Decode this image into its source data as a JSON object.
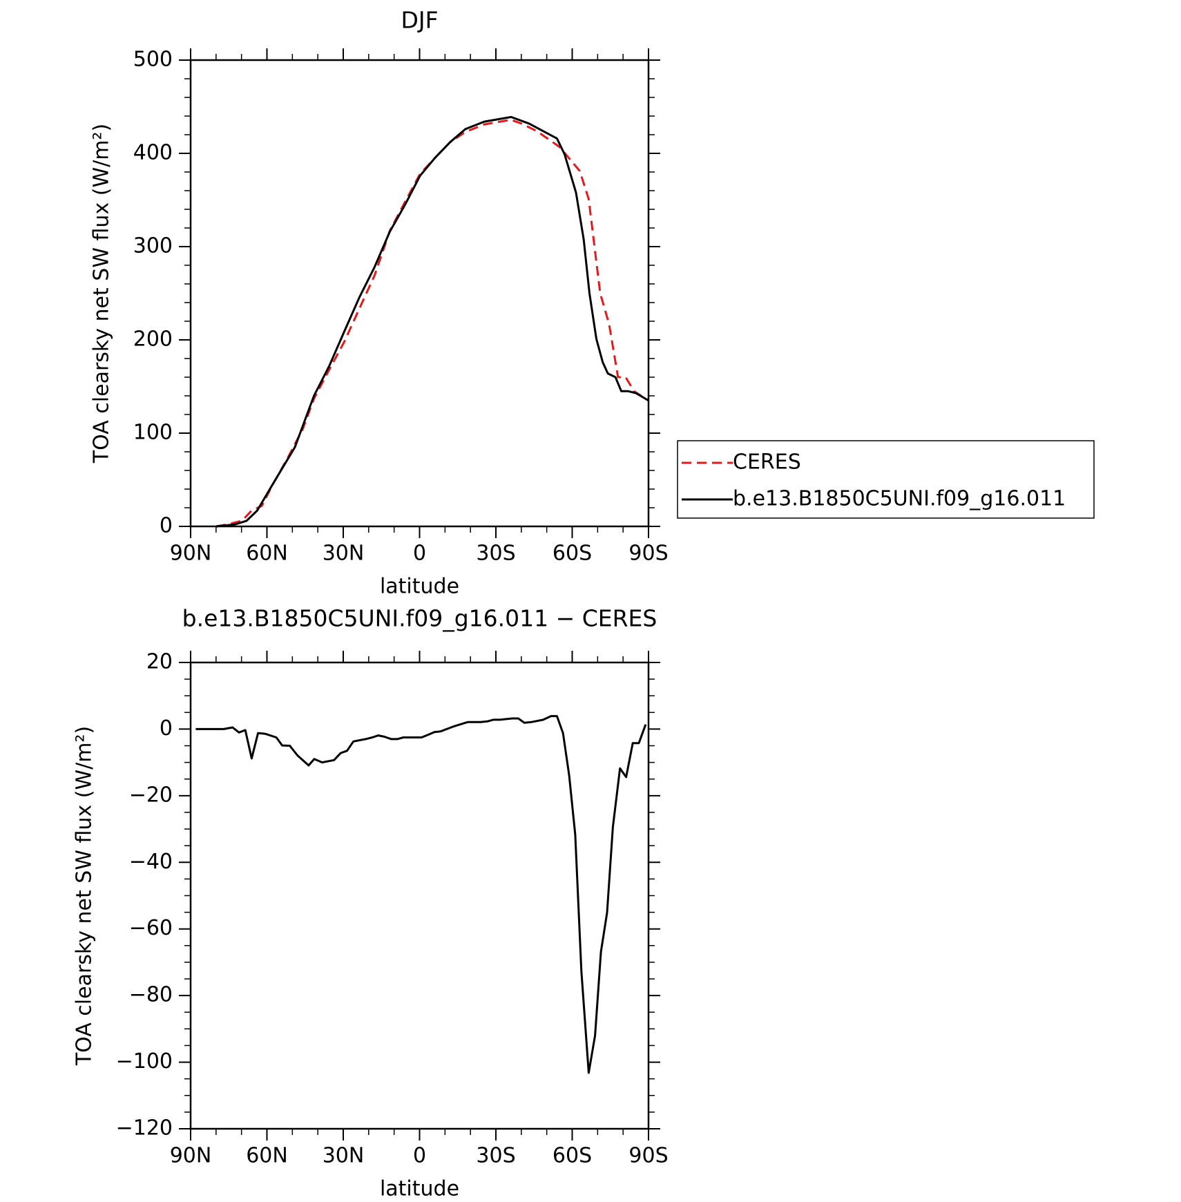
{
  "chart_data": [
    {
      "type": "line",
      "title": "DJF",
      "xlabel": "latitude",
      "ylabel": "TOA clearsky net SW flux (W/m²)",
      "xlim": [
        90,
        -90
      ],
      "xticks": [
        {
          "value": 90,
          "label": "90N"
        },
        {
          "value": 60,
          "label": "60N"
        },
        {
          "value": 30,
          "label": "30N"
        },
        0,
        {
          "value": -30,
          "label": "30S"
        },
        {
          "value": -60,
          "label": "60S"
        },
        {
          "value": -90,
          "label": "90S"
        }
      ],
      "xminorticks": [
        80,
        70,
        50,
        40,
        20,
        10,
        -10,
        -20,
        -40,
        -50,
        -70,
        -80
      ],
      "ylim": [
        0,
        500
      ],
      "yticks": [
        0,
        100,
        200,
        300,
        400,
        500
      ],
      "yminorticks": [
        20,
        40,
        60,
        80,
        120,
        140,
        160,
        180,
        220,
        240,
        260,
        280,
        320,
        340,
        360,
        380,
        420,
        440,
        460,
        480
      ],
      "legend": "right",
      "series": [
        {
          "name": "CERES",
          "color": "#e31a1c",
          "dash": "dashed",
          "x": [
            80,
            75.7,
            69.8,
            66,
            62,
            57.9,
            51.9,
            46,
            41.5,
            35.5,
            29.6,
            23.6,
            17.7,
            11.7,
            5.7,
            -0.2,
            -6,
            -12,
            -18,
            -25.4,
            -35.9,
            -40,
            -46,
            -55,
            -63,
            -66.5,
            -71,
            -74.5,
            -78,
            -81,
            -84.3,
            -90
          ],
          "values": [
            0,
            2,
            6,
            17,
            22,
            44,
            73,
            104,
            137,
            168,
            198,
            234,
            269,
            317,
            348,
            378,
            395,
            412,
            423,
            431,
            436,
            432,
            424,
            407,
            381,
            351,
            250,
            217,
            160,
            160,
            145,
            135
          ]
        },
        {
          "name": "b.e13.B1850C5UNI.f09_g16.011",
          "color": "#000000",
          "dash": "solid",
          "x": [
            80,
            72.7,
            68,
            63.8,
            58,
            49,
            41.5,
            35.5,
            29.6,
            23.6,
            17.7,
            11.7,
            5.7,
            -0.2,
            -6,
            -12,
            -18,
            -25.4,
            -36,
            -43,
            -54,
            -57,
            -61.5,
            -64.5,
            -66.8,
            -69.5,
            -72,
            -74,
            -77,
            -79.3,
            -82,
            -85,
            -90
          ],
          "values": [
            0,
            2,
            6,
            17,
            44,
            85,
            140,
            172,
            209,
            246,
            278,
            316,
            345,
            376,
            395,
            412,
            426,
            434,
            439,
            432,
            416,
            399,
            358,
            308,
            250,
            201,
            176,
            164,
            160,
            145,
            145,
            143,
            135
          ]
        }
      ]
    },
    {
      "type": "line",
      "title": "b.e13.B1850C5UNI.f09_g16.011 − CERES",
      "xlabel": "latitude",
      "ylabel": "TOA clearsky net SW flux (W/m²)",
      "xlim": [
        90,
        -90
      ],
      "xticks": [
        {
          "value": 90,
          "label": "90N"
        },
        {
          "value": 60,
          "label": "60N"
        },
        {
          "value": 30,
          "label": "30N"
        },
        0,
        {
          "value": -30,
          "label": "30S"
        },
        {
          "value": -60,
          "label": "60S"
        },
        {
          "value": -90,
          "label": "90S"
        }
      ],
      "xminorticks": [
        80,
        70,
        50,
        40,
        20,
        10,
        -10,
        -20,
        -40,
        -50,
        -70,
        -80
      ],
      "ylim": [
        -120,
        20
      ],
      "yticks": [
        {
          "value": -120,
          "label": "−120"
        },
        {
          "value": -100,
          "label": "−100"
        },
        {
          "value": -80,
          "label": "−80"
        },
        {
          "value": -60,
          "label": "−60"
        },
        {
          "value": -40,
          "label": "−40"
        },
        {
          "value": -20,
          "label": "−20"
        },
        0,
        20
      ],
      "yminorticks": [
        -115,
        -110,
        -105,
        -95,
        -90,
        -85,
        -75,
        -70,
        -65,
        -55,
        -50,
        -45,
        -35,
        -30,
        -25,
        -15,
        -10,
        -5,
        5,
        10,
        15
      ],
      "series": [
        {
          "color": "#000000",
          "dash": "solid",
          "x": [
            88,
            77,
            73.5,
            71,
            68.5,
            66,
            63.5,
            60.7,
            56.3,
            54,
            51,
            48,
            43.6,
            41.4,
            38.3,
            33.6,
            31,
            28.5,
            26,
            21.2,
            18.6,
            16.2,
            13.8,
            11.1,
            8.75,
            6.4,
            4,
            -0.8,
            -3.7,
            -5.8,
            -8.2,
            -13,
            -15.9,
            -18.9,
            -24,
            -26.6,
            -29,
            -31.6,
            -36.4,
            -38.8,
            -41.2,
            -43.9,
            -48.6,
            -51.7,
            -54,
            -56.4,
            -58.8,
            -61.2,
            -63.6,
            -66.5,
            -69,
            -71.3,
            -73.7,
            -76,
            -78.8,
            -81.2,
            -83.8,
            -86.2,
            -88.9
          ],
          "values": [
            0,
            0,
            0.5,
            -1,
            -0.3,
            -8.8,
            -1.2,
            -1.4,
            -2.5,
            -4.9,
            -5,
            -7.9,
            -10.9,
            -9,
            -10,
            -9.3,
            -7.2,
            -6.5,
            -3.7,
            -3,
            -2.5,
            -1.9,
            -2.3,
            -3,
            -3,
            -2.5,
            -2.5,
            -2.5,
            -1.6,
            -0.9,
            -0.7,
            0.7,
            1.4,
            2.1,
            2.1,
            2.3,
            2.8,
            2.8,
            3.2,
            3.2,
            1.9,
            2.1,
            2.8,
            3.9,
            3.9,
            -1.2,
            -13.9,
            -31.7,
            -72.7,
            -103.2,
            -92,
            -66.9,
            -55.1,
            -29.4,
            -11.8,
            -14.4,
            -4.2,
            -4.2,
            1.4
          ]
        }
      ]
    }
  ]
}
